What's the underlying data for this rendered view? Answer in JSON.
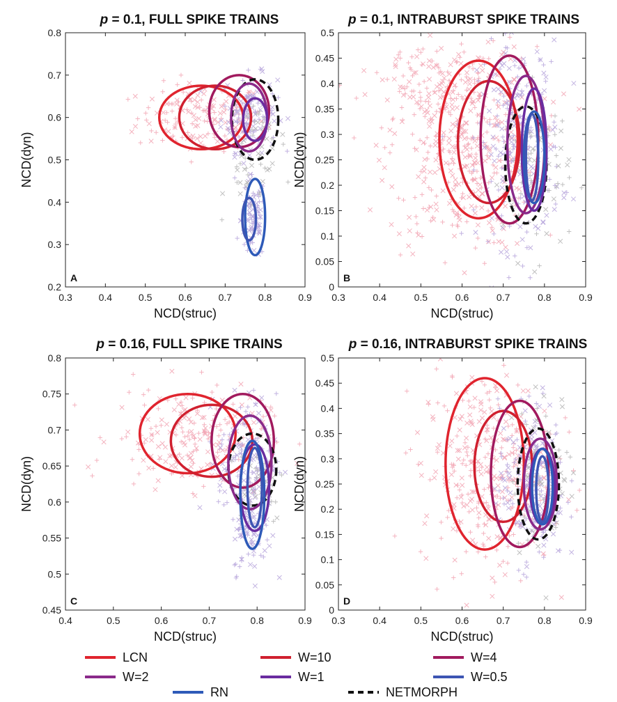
{
  "colors": {
    "LCN": "#e0242e",
    "W=10": "#d0202f",
    "W=4": "#a11a5e",
    "W=2": "#8a2a8a",
    "W=1": "#6a2ca0",
    "W=0.5": "#3d55b3",
    "RN": "#2e5ab8",
    "NETMORPH": "#111111",
    "scatter_pink": "#f2a6b4",
    "scatter_lilac": "#b7a6dc",
    "scatter_gray": "#b5b5b5"
  },
  "legend": {
    "entries": [
      {
        "label": "LCN",
        "style": "solid",
        "key": "LCN"
      },
      {
        "label": "W=10",
        "style": "solid",
        "key": "W=10"
      },
      {
        "label": "W=4",
        "style": "solid",
        "key": "W=4"
      },
      {
        "label": "W=2",
        "style": "solid",
        "key": "W=2"
      },
      {
        "label": "W=1",
        "style": "solid",
        "key": "W=1"
      },
      {
        "label": "W=0.5",
        "style": "solid",
        "key": "W=0.5"
      },
      {
        "label": "RN",
        "style": "solid",
        "key": "RN"
      },
      {
        "label": "NETMORPH",
        "style": "dashed",
        "key": "NETMORPH"
      }
    ]
  },
  "chart_data": [
    {
      "panel": "A",
      "type": "scatter",
      "title_p": "p",
      "title_rest": " = 0.1, FULL SPIKE TRAINS",
      "xlabel": "NCD(struc)",
      "ylabel": "NCD(dyn)",
      "xlim": [
        0.3,
        0.9
      ],
      "ylim": [
        0.2,
        0.8
      ],
      "xticks": [
        "0.3",
        "0.4",
        "0.5",
        "0.6",
        "0.7",
        "0.8",
        "0.9"
      ],
      "yticks": [
        "0.2",
        "0.3",
        "0.4",
        "0.5",
        "0.6",
        "0.7",
        "0.8"
      ],
      "ellipses": [
        {
          "series": "LCN",
          "cx": 0.64,
          "cy": 0.6,
          "rx": 0.105,
          "ry": 0.075
        },
        {
          "series": "W=10",
          "cx": 0.675,
          "cy": 0.6,
          "rx": 0.09,
          "ry": 0.075
        },
        {
          "series": "W=4",
          "cx": 0.735,
          "cy": 0.615,
          "rx": 0.075,
          "ry": 0.085
        },
        {
          "series": "NETMORPH",
          "cx": 0.775,
          "cy": 0.595,
          "rx": 0.058,
          "ry": 0.095
        },
        {
          "series": "W=2",
          "cx": 0.76,
          "cy": 0.6,
          "rx": 0.045,
          "ry": 0.08
        },
        {
          "series": "W=1",
          "cx": 0.775,
          "cy": 0.595,
          "rx": 0.03,
          "ry": 0.05
        },
        {
          "series": "RN",
          "cx": 0.775,
          "cy": 0.365,
          "rx": 0.025,
          "ry": 0.09
        },
        {
          "series": "W=0.5",
          "cx": 0.76,
          "cy": 0.36,
          "rx": 0.017,
          "ry": 0.05
        }
      ],
      "clouds": [
        {
          "color": "pink",
          "cx": 0.64,
          "cy": 0.6,
          "sx": 0.08,
          "sy": 0.04,
          "n": 160
        },
        {
          "color": "lilac",
          "cx": 0.76,
          "cy": 0.61,
          "sx": 0.035,
          "sy": 0.045,
          "n": 130
        },
        {
          "color": "gray",
          "cx": 0.79,
          "cy": 0.55,
          "sx": 0.03,
          "sy": 0.04,
          "n": 40
        },
        {
          "color": "lilac",
          "cx": 0.77,
          "cy": 0.36,
          "sx": 0.015,
          "sy": 0.05,
          "n": 90
        },
        {
          "color": "gray",
          "cx": 0.76,
          "cy": 0.46,
          "sx": 0.03,
          "sy": 0.04,
          "n": 25
        }
      ]
    },
    {
      "panel": "B",
      "type": "scatter",
      "title_p": "p",
      "title_rest": " = 0.1, INTRABURST SPIKE TRAINS",
      "xlabel": "NCD(struc)",
      "ylabel": "NCD(dyn)",
      "xlim": [
        0.3,
        0.9
      ],
      "ylim": [
        0,
        0.5
      ],
      "xticks": [
        "0.3",
        "0.4",
        "0.5",
        "0.6",
        "0.7",
        "0.8",
        "0.9"
      ],
      "yticks": [
        "0",
        "0.05",
        "0.1",
        "0.15",
        "0.2",
        "0.25",
        "0.3",
        "0.35",
        "0.4",
        "0.45",
        "0.5"
      ],
      "ellipses": [
        {
          "series": "LCN",
          "cx": 0.64,
          "cy": 0.29,
          "rx": 0.095,
          "ry": 0.155
        },
        {
          "series": "W=10",
          "cx": 0.665,
          "cy": 0.285,
          "rx": 0.075,
          "ry": 0.12
        },
        {
          "series": "W=4",
          "cx": 0.715,
          "cy": 0.29,
          "rx": 0.07,
          "ry": 0.165
        },
        {
          "series": "NETMORPH",
          "cx": 0.755,
          "cy": 0.24,
          "rx": 0.05,
          "ry": 0.115
        },
        {
          "series": "W=2",
          "cx": 0.755,
          "cy": 0.28,
          "rx": 0.045,
          "ry": 0.135
        },
        {
          "series": "W=1",
          "cx": 0.775,
          "cy": 0.27,
          "rx": 0.03,
          "ry": 0.12
        },
        {
          "series": "RN",
          "cx": 0.775,
          "cy": 0.255,
          "rx": 0.025,
          "ry": 0.09
        },
        {
          "series": "W=0.5",
          "cx": 0.77,
          "cy": 0.255,
          "rx": 0.015,
          "ry": 0.085
        }
      ],
      "clouds": [
        {
          "color": "pink",
          "cx": 0.6,
          "cy": 0.27,
          "sx": 0.09,
          "sy": 0.1,
          "n": 420
        },
        {
          "color": "lilac",
          "cx": 0.74,
          "cy": 0.28,
          "sx": 0.05,
          "sy": 0.1,
          "n": 260
        },
        {
          "color": "gray",
          "cx": 0.78,
          "cy": 0.22,
          "sx": 0.04,
          "sy": 0.08,
          "n": 80
        },
        {
          "color": "pink",
          "cx": 0.55,
          "cy": 0.4,
          "sx": 0.1,
          "sy": 0.05,
          "n": 120
        }
      ]
    },
    {
      "panel": "C",
      "type": "scatter",
      "title_p": "p",
      "title_rest": " = 0.16, FULL SPIKE TRAINS",
      "xlabel": "NCD(struc)",
      "ylabel": "NCD(dyn)",
      "xlim": [
        0.4,
        0.9
      ],
      "ylim": [
        0.45,
        0.8
      ],
      "xticks": [
        "0.4",
        "0.5",
        "0.6",
        "0.7",
        "0.8",
        "0.9"
      ],
      "yticks": [
        "0.45",
        "0.5",
        "0.55",
        "0.6",
        "0.65",
        "0.7",
        "0.75",
        "0.8"
      ],
      "ellipses": [
        {
          "series": "LCN",
          "cx": 0.655,
          "cy": 0.695,
          "rx": 0.1,
          "ry": 0.055
        },
        {
          "series": "W=10",
          "cx": 0.705,
          "cy": 0.685,
          "rx": 0.085,
          "ry": 0.05
        },
        {
          "series": "W=4",
          "cx": 0.77,
          "cy": 0.685,
          "rx": 0.065,
          "ry": 0.065
        },
        {
          "series": "NETMORPH",
          "cx": 0.79,
          "cy": 0.645,
          "rx": 0.05,
          "ry": 0.05
        },
        {
          "series": "W=2",
          "cx": 0.785,
          "cy": 0.655,
          "rx": 0.045,
          "ry": 0.065
        },
        {
          "series": "W=1",
          "cx": 0.795,
          "cy": 0.62,
          "rx": 0.03,
          "ry": 0.06
        },
        {
          "series": "RN",
          "cx": 0.79,
          "cy": 0.61,
          "rx": 0.025,
          "ry": 0.075
        },
        {
          "series": "W=0.5",
          "cx": 0.795,
          "cy": 0.62,
          "rx": 0.015,
          "ry": 0.055
        }
      ],
      "clouds": [
        {
          "color": "pink",
          "cx": 0.66,
          "cy": 0.69,
          "sx": 0.08,
          "sy": 0.035,
          "n": 220
        },
        {
          "color": "lilac",
          "cx": 0.78,
          "cy": 0.66,
          "sx": 0.03,
          "sy": 0.045,
          "n": 150
        },
        {
          "color": "gray",
          "cx": 0.8,
          "cy": 0.63,
          "sx": 0.03,
          "sy": 0.03,
          "n": 50
        },
        {
          "color": "lilac",
          "cx": 0.79,
          "cy": 0.56,
          "sx": 0.02,
          "sy": 0.03,
          "n": 80
        }
      ]
    },
    {
      "panel": "D",
      "type": "scatter",
      "title_p": "p",
      "title_rest": " = 0.16, INTRABURST SPIKE TRAINS",
      "xlabel": "NCD(struc)",
      "ylabel": "NCD(dyn)",
      "xlim": [
        0.3,
        0.9
      ],
      "ylim": [
        0,
        0.5
      ],
      "xticks": [
        "0.3",
        "0.4",
        "0.5",
        "0.6",
        "0.7",
        "0.8",
        "0.9"
      ],
      "yticks": [
        "0",
        "0.05",
        "0.1",
        "0.15",
        "0.2",
        "0.25",
        "0.3",
        "0.35",
        "0.4",
        "0.45",
        "0.5"
      ],
      "ellipses": [
        {
          "series": "LCN",
          "cx": 0.655,
          "cy": 0.29,
          "rx": 0.095,
          "ry": 0.17
        },
        {
          "series": "W=10",
          "cx": 0.7,
          "cy": 0.285,
          "rx": 0.07,
          "ry": 0.11
        },
        {
          "series": "W=4",
          "cx": 0.74,
          "cy": 0.27,
          "rx": 0.07,
          "ry": 0.145
        },
        {
          "series": "NETMORPH",
          "cx": 0.785,
          "cy": 0.25,
          "rx": 0.05,
          "ry": 0.11
        },
        {
          "series": "W=2",
          "cx": 0.79,
          "cy": 0.25,
          "rx": 0.04,
          "ry": 0.09
        },
        {
          "series": "W=1",
          "cx": 0.795,
          "cy": 0.245,
          "rx": 0.03,
          "ry": 0.075
        },
        {
          "series": "RN",
          "cx": 0.795,
          "cy": 0.245,
          "rx": 0.025,
          "ry": 0.075
        },
        {
          "series": "W=0.5",
          "cx": 0.795,
          "cy": 0.24,
          "rx": 0.015,
          "ry": 0.065
        }
      ],
      "clouds": [
        {
          "color": "pink",
          "cx": 0.66,
          "cy": 0.28,
          "sx": 0.08,
          "sy": 0.1,
          "n": 380
        },
        {
          "color": "lilac",
          "cx": 0.77,
          "cy": 0.25,
          "sx": 0.04,
          "sy": 0.08,
          "n": 220
        },
        {
          "color": "gray",
          "cx": 0.8,
          "cy": 0.27,
          "sx": 0.04,
          "sy": 0.08,
          "n": 90
        }
      ]
    }
  ]
}
